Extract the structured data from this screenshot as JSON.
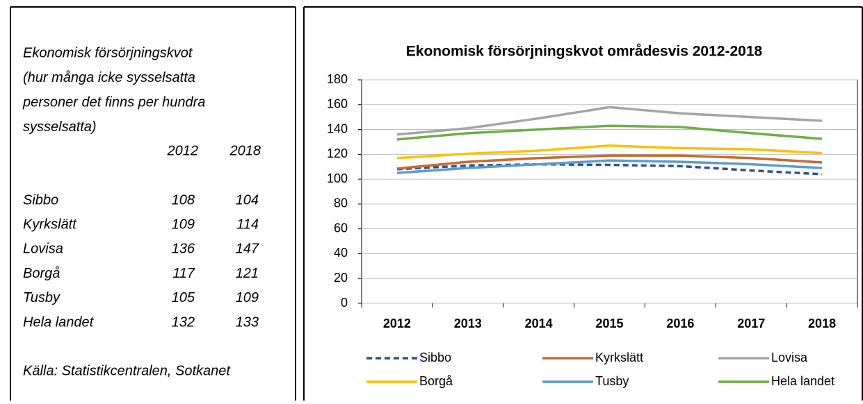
{
  "text_box": {
    "title_lines": [
      "Ekonomisk försörjningskvot",
      "(hur många icke sysselsatta",
      "personer det finns per hundra",
      "sysselsatta)"
    ],
    "columns": [
      "2012",
      "2018"
    ],
    "rows": [
      [
        "Sibbo",
        108,
        104
      ],
      [
        "Kyrkslätt",
        109,
        114
      ],
      [
        "Lovisa",
        136,
        147
      ],
      [
        "Borgå",
        117,
        121
      ],
      [
        "Tusby",
        105,
        109
      ],
      [
        "Hela landet",
        132,
        133
      ]
    ],
    "source": "Källa: Statistikcentralen, Sotkanet"
  },
  "chart_data": {
    "type": "line",
    "title": "Ekonomisk försörjningskvot områdesvis 2012-2018",
    "categories": [
      "2012",
      "2013",
      "2014",
      "2015",
      "2016",
      "2017",
      "2018"
    ],
    "series": [
      {
        "name": "Sibbo",
        "color": "#2f528f",
        "dashed": true,
        "values": [
          108,
          111,
          112,
          111.5,
          110.5,
          107,
          104
        ]
      },
      {
        "name": "Kyrkslätt",
        "color": "#c96a2e",
        "values": [
          108.5,
          114,
          117,
          119,
          119,
          117,
          113.5
        ]
      },
      {
        "name": "Lovisa",
        "color": "#a5a5a5",
        "values": [
          136,
          141,
          149,
          158,
          153,
          150,
          147
        ]
      },
      {
        "name": "Borgå",
        "color": "#ffc000",
        "values": [
          117,
          120.5,
          123,
          127,
          125,
          124,
          121
        ]
      },
      {
        "name": "Tusby",
        "color": "#5b9bd5",
        "values": [
          105,
          109,
          112,
          115,
          114,
          112,
          109
        ]
      },
      {
        "name": "Hela landet",
        "color": "#70ad47",
        "values": [
          132,
          137,
          140,
          143,
          142,
          137,
          132.5
        ]
      }
    ],
    "ylim": [
      0,
      180
    ],
    "yticks": [
      0,
      20,
      40,
      60,
      80,
      100,
      120,
      140,
      160,
      180
    ],
    "grid": true
  }
}
